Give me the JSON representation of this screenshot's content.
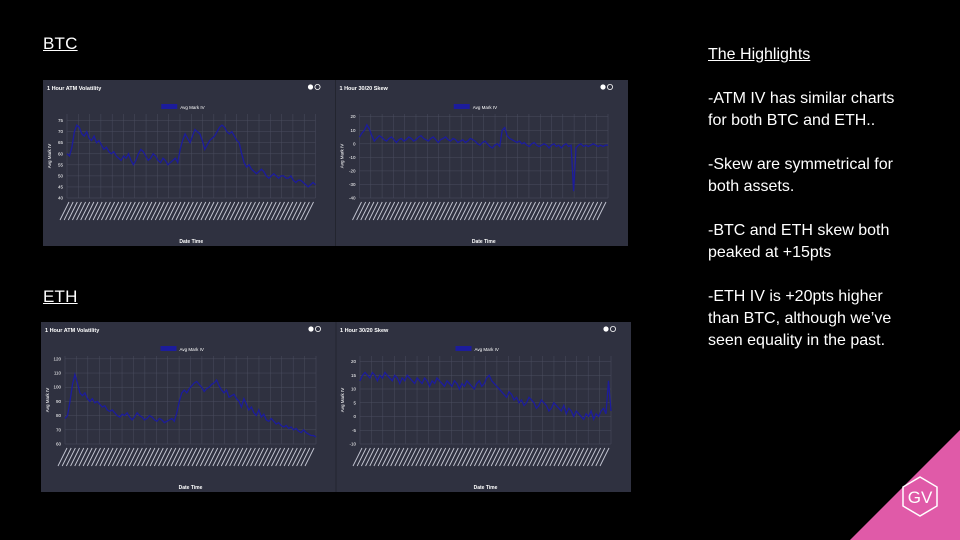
{
  "sections": {
    "btc": "BTC",
    "eth": "ETH"
  },
  "highlights": {
    "title": "The Highlights",
    "items": [
      "-ATM IV has similar charts for both BTC and ETH..",
      "-Skew are symmetrical for both assets.",
      "-BTC and ETH skew both peaked at +15pts",
      "-ETH IV is +20pts higher than BTC, although we’ve seen equality in the past."
    ]
  },
  "logo": {
    "text": "GV",
    "color": "#e05aa8"
  },
  "colors": {
    "panel": "#2f3140",
    "series": "#1c1c9c",
    "grid": "#4a4d5e"
  },
  "chart_data": [
    {
      "id": "btc_atm",
      "type": "line",
      "title": "1 Hour ATM Volatility",
      "legend": "Avg Mark IV",
      "xlabel": "Date Time",
      "ylabel": "Avg Mark IV",
      "yticks": [
        40,
        45,
        50,
        55,
        60,
        65,
        70,
        75
      ],
      "ylim": [
        40,
        78
      ],
      "grid": true,
      "series": [
        {
          "name": "Avg Mark IV",
          "values": [
            60,
            59,
            63,
            70,
            73,
            72,
            69,
            68,
            70,
            67,
            66,
            68,
            65,
            66,
            64,
            62,
            63,
            61,
            60,
            61,
            59,
            58,
            57,
            59,
            58,
            60,
            57,
            55,
            57,
            60,
            62,
            61,
            59,
            57,
            58,
            60,
            59,
            57,
            56,
            58,
            57,
            55,
            56,
            57,
            58,
            56,
            62,
            66,
            69,
            67,
            65,
            68,
            71,
            70,
            69,
            66,
            62,
            64,
            66,
            67,
            68,
            70,
            72,
            73,
            72,
            70,
            69,
            70,
            68,
            66,
            65,
            60,
            56,
            54,
            55,
            53,
            52,
            51,
            52,
            53,
            52,
            50,
            49,
            50,
            51,
            50,
            49,
            50,
            50,
            49,
            49,
            50,
            48,
            47,
            48,
            48,
            47,
            46,
            45,
            46,
            47,
            46
          ]
        }
      ]
    },
    {
      "id": "btc_skew",
      "type": "line",
      "title": "1 Hour 30/20 Skew",
      "legend": "Avg Mark IV",
      "xlabel": "Date Time",
      "ylabel": "Avg Mark IV",
      "yticks": [
        -40,
        -30,
        -20,
        -10,
        0,
        10,
        20
      ],
      "ylim": [
        -40,
        22
      ],
      "grid": true,
      "series": [
        {
          "name": "Avg Mark IV",
          "values": [
            5,
            8,
            10,
            14,
            11,
            6,
            2,
            4,
            6,
            5,
            3,
            2,
            4,
            5,
            3,
            1,
            3,
            4,
            2,
            3,
            5,
            4,
            2,
            3,
            5,
            6,
            4,
            3,
            2,
            4,
            5,
            3,
            1,
            3,
            4,
            5,
            3,
            2,
            4,
            3,
            1,
            2,
            3,
            1,
            2,
            4,
            3,
            2,
            0,
            -1,
            1,
            2,
            0,
            -2,
            -3,
            -1,
            0,
            -2,
            10,
            12,
            6,
            4,
            3,
            2,
            1,
            2,
            0,
            1,
            -1,
            -2,
            0,
            1,
            -1,
            -2,
            -1,
            0,
            -1,
            -3,
            -1,
            0,
            -2,
            -1,
            -3,
            -1,
            0,
            -2,
            -1,
            -35,
            -3,
            -1,
            0,
            -2,
            -1,
            -2,
            -1,
            0,
            -1,
            -2,
            -1,
            -2,
            -1,
            -1
          ]
        }
      ]
    },
    {
      "id": "eth_atm",
      "type": "line",
      "title": "1 Hour ATM Volatility",
      "legend": "Avg Mark IV",
      "xlabel": "Date Time",
      "ylabel": "Avg Mark IV",
      "yticks": [
        60,
        70,
        80,
        90,
        100,
        110,
        120
      ],
      "ylim": [
        60,
        122
      ],
      "grid": true,
      "series": [
        {
          "name": "Avg Mark IV",
          "values": [
            78,
            80,
            90,
            102,
            109,
            103,
            96,
            94,
            96,
            92,
            90,
            92,
            89,
            90,
            88,
            86,
            87,
            84,
            83,
            84,
            82,
            80,
            79,
            81,
            80,
            82,
            79,
            77,
            79,
            82,
            80,
            79,
            77,
            78,
            80,
            79,
            77,
            76,
            78,
            77,
            75,
            76,
            77,
            78,
            76,
            82,
            90,
            96,
            98,
            96,
            99,
            101,
            103,
            104,
            102,
            100,
            97,
            99,
            100,
            102,
            103,
            105,
            101,
            98,
            96,
            98,
            93,
            94,
            95,
            92,
            90,
            86,
            92,
            88,
            84,
            86,
            82,
            80,
            84,
            79,
            81,
            77,
            76,
            78,
            76,
            74,
            75,
            73,
            72,
            73,
            71,
            72,
            70,
            71,
            69,
            68,
            70,
            68,
            67,
            66,
            66,
            65
          ]
        }
      ]
    },
    {
      "id": "eth_skew",
      "type": "line",
      "title": "1 Hour 30/20 Skew",
      "legend": "Avg Mark IV",
      "xlabel": "Date Time",
      "ylabel": "Avg Mark IV",
      "yticks": [
        -10,
        -5,
        0,
        5,
        10,
        15,
        20
      ],
      "ylim": [
        -10,
        22
      ],
      "grid": true,
      "series": [
        {
          "name": "Avg Mark IV",
          "values": [
            13,
            15,
            16,
            15,
            14,
            16,
            15,
            13,
            15,
            14,
            16,
            15,
            14,
            13,
            15,
            14,
            12,
            14,
            13,
            15,
            14,
            13,
            12,
            14,
            13,
            12,
            14,
            13,
            11,
            13,
            12,
            14,
            13,
            12,
            11,
            13,
            12,
            11,
            13,
            12,
            10,
            12,
            11,
            13,
            12,
            11,
            10,
            12,
            13,
            11,
            12,
            14,
            15,
            13,
            12,
            11,
            10,
            9,
            8,
            7,
            9,
            8,
            6,
            7,
            5,
            6,
            4,
            5,
            7,
            6,
            5,
            3,
            4,
            6,
            5,
            4,
            2,
            3,
            5,
            4,
            3,
            2,
            4,
            1,
            3,
            2,
            0,
            2,
            1,
            0,
            -1,
            1,
            0,
            2,
            -1,
            1,
            0,
            2,
            3,
            1,
            13,
            2
          ]
        }
      ]
    }
  ]
}
